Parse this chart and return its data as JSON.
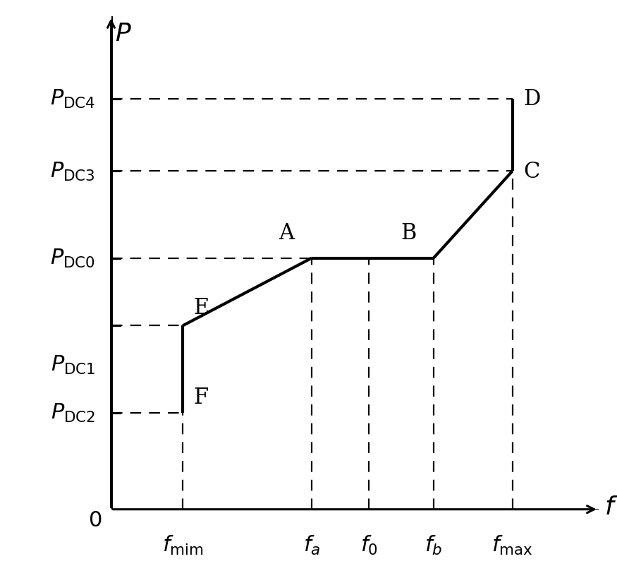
{
  "background_color": "#ffffff",
  "f_min": 1.0,
  "f_a": 2.8,
  "f_0": 3.6,
  "f_b": 4.5,
  "f_max": 5.6,
  "P_DC0": 5.2,
  "P_DC1": 3.0,
  "P_DC2": 2.0,
  "P_DC3": 7.0,
  "P_DC4": 8.5,
  "P_E": 3.8,
  "main_line_color": "#000000",
  "dashed_line_color": "#000000",
  "xlim": [
    0,
    6.8
  ],
  "ylim": [
    0,
    10.2
  ]
}
